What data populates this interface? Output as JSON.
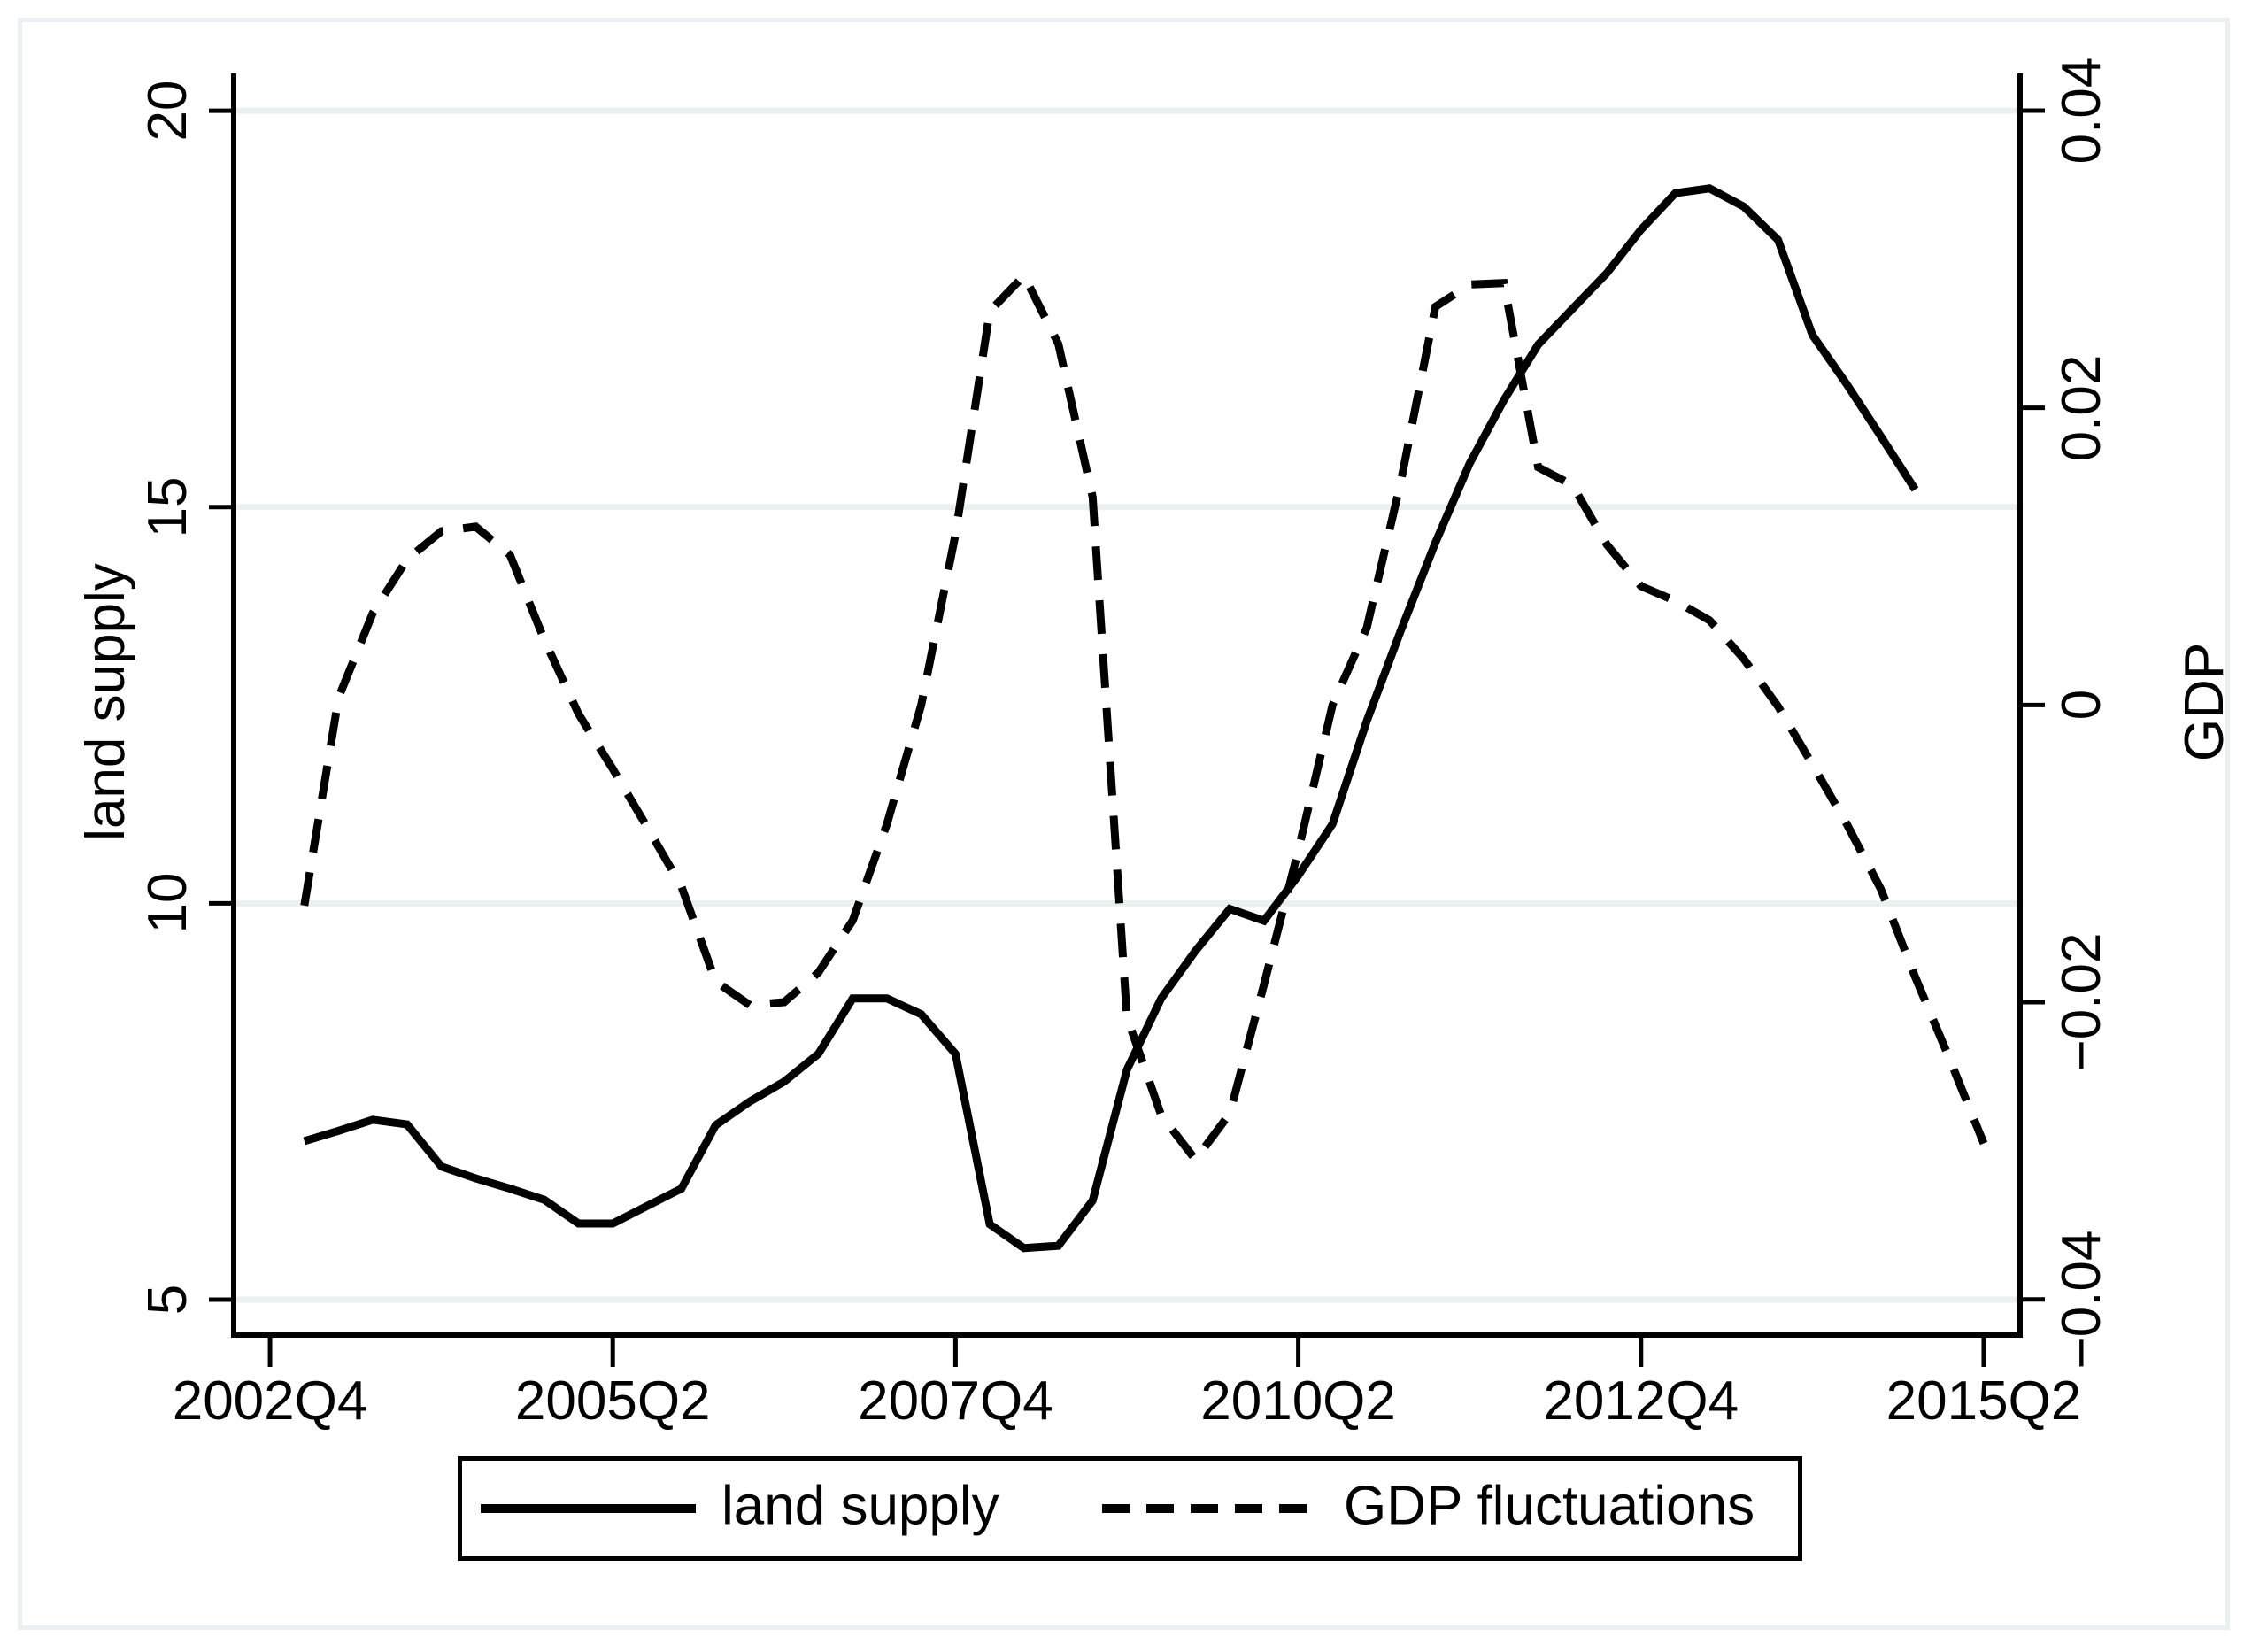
{
  "figure": {
    "background": "#ffffff",
    "border_color": "#e9f0f2"
  },
  "chart_data": {
    "type": "line",
    "title": "",
    "grid_color": "#e9f0f2",
    "line_color": "#000000",
    "x_axis": {
      "tick_labels": [
        "2002Q4",
        "2005Q2",
        "2007Q4",
        "2010Q2",
        "2012Q4",
        "2015Q2"
      ],
      "tick_quarter_index": [
        0,
        10,
        20,
        30,
        40,
        50
      ],
      "xlim_index": [
        -1.06,
        51.06
      ],
      "unit": "quarter"
    },
    "y_axis_left": {
      "title": "land supply",
      "ticks": [
        5,
        10,
        15,
        20
      ],
      "tick_labels": [
        "5",
        "10",
        "15",
        "20"
      ],
      "ylim": [
        4.553,
        20.47
      ],
      "gridlines": true
    },
    "y_axis_right": {
      "title": "GDP",
      "ticks": [
        0.04,
        0.02,
        0,
        -0.02,
        -0.04
      ],
      "tick_labels": [
        "0.04",
        "0.02",
        "0",
        "−0.02",
        "−0.04"
      ],
      "ylim": [
        -0.0424,
        0.0425
      ],
      "gridlines": false
    },
    "series": [
      {
        "name": "land supply",
        "axis": "left",
        "style": "solid",
        "color": "#000000",
        "start_quarter": "2003Q1",
        "start_index": 1,
        "end_quarter": "2014Q4",
        "quarterly_values": [
          7.0,
          7.13,
          7.27,
          7.21,
          6.68,
          6.53,
          6.4,
          6.26,
          5.96,
          5.96,
          6.18,
          6.4,
          7.2,
          7.5,
          7.75,
          8.1,
          8.8,
          8.8,
          8.6,
          8.1,
          5.95,
          5.65,
          5.68,
          6.25,
          7.9,
          8.8,
          9.4,
          9.93,
          9.78,
          10.35,
          11.0,
          12.3,
          13.45,
          14.55,
          15.55,
          16.35,
          17.05,
          17.5,
          17.95,
          18.5,
          18.96,
          19.02,
          18.79,
          18.37,
          17.17,
          16.55,
          15.89,
          15.22
        ]
      },
      {
        "name": "GDP fluctuations",
        "axis": "right",
        "style": "dashed",
        "color": "#000000",
        "start_quarter": "2003Q1",
        "start_index": 1,
        "end_quarter": "2015Q2",
        "quarterly_values": [
          -0.0135,
          0.0005,
          0.0062,
          0.0098,
          0.0117,
          0.012,
          0.0101,
          0.0044,
          -0.0006,
          -0.0043,
          -0.0082,
          -0.0122,
          -0.0186,
          -0.0202,
          -0.02,
          -0.018,
          -0.0145,
          -0.008,
          0.0,
          0.0115,
          0.0265,
          0.0289,
          0.0243,
          0.014,
          -0.021,
          -0.0276,
          -0.0306,
          -0.0275,
          -0.0188,
          -0.0098,
          0.0,
          0.0052,
          0.0151,
          0.0268,
          0.0283,
          0.0284,
          0.016,
          0.0148,
          0.0108,
          0.008,
          0.007,
          0.0057,
          0.0031,
          -0.0001,
          -0.004,
          -0.008,
          -0.0124,
          -0.0183,
          -0.0238,
          -0.0295
        ]
      }
    ],
    "legend": {
      "position": "bottom",
      "items": [
        {
          "label": "land supply",
          "line": "solid"
        },
        {
          "label": "GDP fluctuations",
          "line": "dashed"
        }
      ]
    }
  }
}
